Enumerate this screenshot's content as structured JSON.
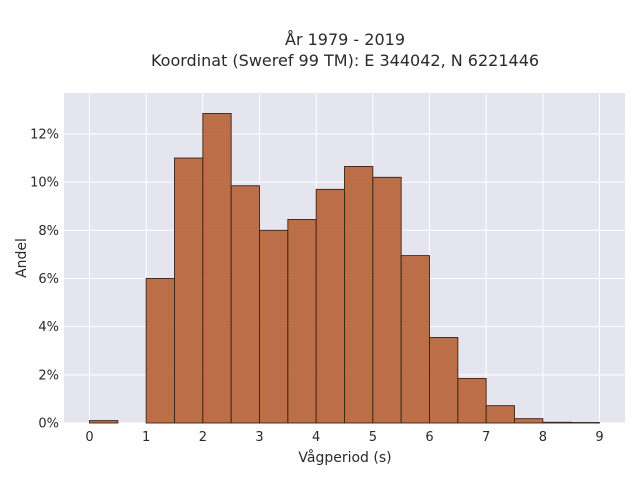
{
  "chart_data": {
    "type": "bar",
    "title_line1": "År 1979 - 2019",
    "title_line2": "Koordinat (Sweref 99 TM): E 344042, N 6221446",
    "xlabel": "Vågperiod (s)",
    "ylabel": "Andel",
    "bin_width": 0.5,
    "bins": [
      {
        "x0": 0.0,
        "x1": 0.5,
        "value": 0.1
      },
      {
        "x0": 0.5,
        "x1": 1.0,
        "value": 0.0
      },
      {
        "x0": 1.0,
        "x1": 1.5,
        "value": 6.0
      },
      {
        "x0": 1.5,
        "x1": 2.0,
        "value": 11.0
      },
      {
        "x0": 2.0,
        "x1": 2.5,
        "value": 12.85
      },
      {
        "x0": 2.5,
        "x1": 3.0,
        "value": 9.85
      },
      {
        "x0": 3.0,
        "x1": 3.5,
        "value": 8.0
      },
      {
        "x0": 3.5,
        "x1": 4.0,
        "value": 8.45
      },
      {
        "x0": 4.0,
        "x1": 4.5,
        "value": 9.7
      },
      {
        "x0": 4.5,
        "x1": 5.0,
        "value": 10.65
      },
      {
        "x0": 5.0,
        "x1": 5.5,
        "value": 10.2
      },
      {
        "x0": 5.5,
        "x1": 6.0,
        "value": 6.95
      },
      {
        "x0": 6.0,
        "x1": 6.5,
        "value": 3.55
      },
      {
        "x0": 6.5,
        "x1": 7.0,
        "value": 1.85
      },
      {
        "x0": 7.0,
        "x1": 7.5,
        "value": 0.72
      },
      {
        "x0": 7.5,
        "x1": 8.0,
        "value": 0.18
      },
      {
        "x0": 8.0,
        "x1": 8.5,
        "value": 0.03
      },
      {
        "x0": 8.5,
        "x1": 9.0,
        "value": 0.02
      }
    ],
    "xlim": [
      -0.45,
      9.45
    ],
    "ylim": [
      0,
      13.7
    ],
    "x_ticks": [
      0,
      1,
      2,
      3,
      4,
      5,
      6,
      7,
      8,
      9
    ],
    "x_tick_labels": [
      "0",
      "1",
      "2",
      "3",
      "4",
      "5",
      "6",
      "7",
      "8",
      "9"
    ],
    "y_ticks": [
      0,
      2,
      4,
      6,
      8,
      10,
      12
    ],
    "y_tick_labels": [
      "0%",
      "2%",
      "4%",
      "6%",
      "8%",
      "10%",
      "12%"
    ],
    "grid": true,
    "colors": {
      "bar_fill": "#b5592b",
      "bar_stroke": "#3a2418",
      "plot_background": "#e5e5ef",
      "grid": "#ffffff"
    }
  }
}
